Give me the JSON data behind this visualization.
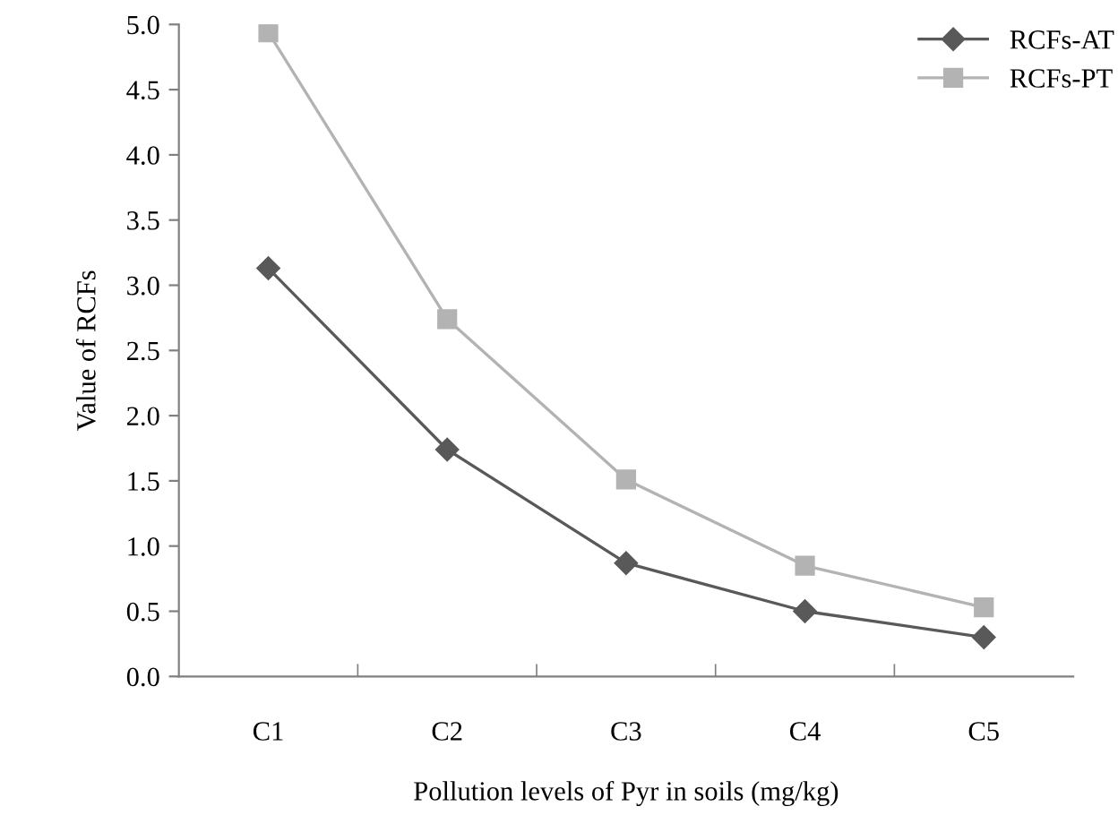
{
  "chart_data": {
    "type": "line",
    "xlabel": "Pollution levels of Pyr in soils (mg/kg)",
    "ylabel": "Value of RCFs",
    "categories": [
      "C1",
      "C2",
      "C3",
      "C4",
      "C5"
    ],
    "series": [
      {
        "name": "RCFs-AT",
        "color": "#595959",
        "marker": "diamond",
        "values": [
          3.13,
          1.74,
          0.87,
          0.5,
          0.3
        ]
      },
      {
        "name": "RCFs-PT",
        "color": "#b3b3b3",
        "marker": "square",
        "values": [
          4.94,
          2.74,
          1.51,
          0.85,
          0.53
        ]
      }
    ],
    "ylim": [
      0,
      5
    ],
    "yticks": [
      {
        "value": 0,
        "label": "0.0"
      },
      0.5,
      {
        "value": 1,
        "label": "1.0"
      },
      1.5,
      {
        "value": 2,
        "label": "2.0"
      },
      2.5,
      {
        "value": 3,
        "label": "3.0"
      },
      3.5,
      {
        "value": 4,
        "label": "4.0"
      },
      4.5,
      {
        "value": 5,
        "label": "5.0"
      }
    ],
    "grid": false,
    "legend": "top right"
  }
}
